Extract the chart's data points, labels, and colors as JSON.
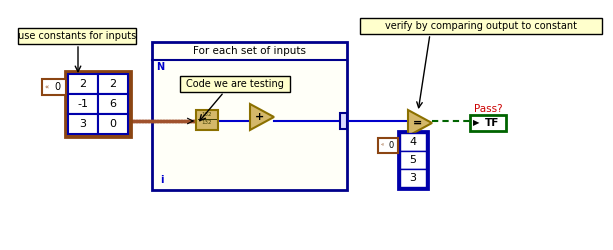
{
  "annotation1": "use constants for inputs",
  "annotation2": "For each set of inputs",
  "annotation3": "Code we are testing",
  "annotation4": "verify by comparing output to constant",
  "pass_label": "Pass?",
  "tf_label": "TF",
  "n_label": "N",
  "i_label": "i",
  "plus_label": "+",
  "eq_label": "=",
  "matrix_vals": [
    [
      "2",
      "2"
    ],
    [
      "-1",
      "6"
    ],
    [
      "3",
      "0"
    ]
  ],
  "output_vals": [
    "4",
    "5",
    "3"
  ],
  "brown": "#8B4513",
  "blue_dark": "#0000AA",
  "blue_med": "#2222CC",
  "green_dark": "#006400",
  "yellow_loop": "#FFFFF0",
  "yellow_label": "#FFFFE0",
  "tan_block": "#D4B86A",
  "tan_border": "#8B7000",
  "wire_brown": "#A0522D",
  "wire_blue": "#0000CC",
  "wire_green": "#008000",
  "label_bg": "#FFFFCC",
  "label_border": "#999900"
}
